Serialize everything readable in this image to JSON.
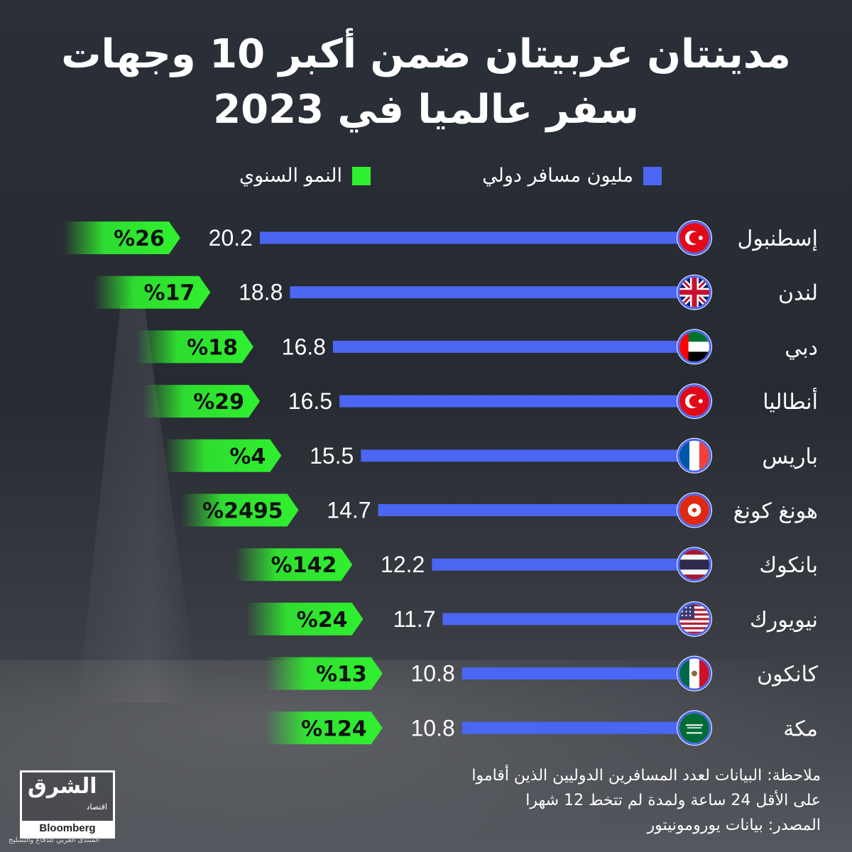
{
  "title_lines": [
    "مدينتان عربيتان ضمن أكبر 10 وجهات",
    "سفر عالميا في 2023"
  ],
  "legend": {
    "travelers": "مليون مسافر دولي",
    "growth": "النمو السنوي"
  },
  "colors": {
    "bar": "#4a66f2",
    "growth": "#2ff02f",
    "background": "#2a2e35"
  },
  "chart_data": {
    "type": "bar",
    "orientation": "horizontal",
    "categories": [
      "إسطنبول",
      "لندن",
      "دبي",
      "أنطاليا",
      "باريس",
      "هونغ كونغ",
      "بانكوك",
      "نيويورك",
      "كانكون",
      "مكة"
    ],
    "series": [
      {
        "name": "مليون مسافر دولي",
        "values": [
          20.2,
          18.8,
          16.8,
          16.5,
          15.5,
          14.7,
          12.2,
          11.7,
          10.8,
          10.8
        ]
      },
      {
        "name": "النمو السنوي",
        "values": [
          "%26",
          "%17",
          "%18",
          "%29",
          "%4",
          "%2495",
          "%142",
          "%24",
          "%13",
          "%124"
        ]
      }
    ],
    "flags": [
      "turkey-flag-icon",
      "uk-flag-icon",
      "uae-flag-icon",
      "turkey-flag-icon",
      "france-flag-icon",
      "hongkong-flag-icon",
      "thailand-flag-icon",
      "usa-flag-icon",
      "mexico-flag-icon",
      "saudi-flag-icon"
    ]
  },
  "footer": {
    "note_line1": "ملاحظة: البيانات لعدد المسافرين الدوليين الذين أقاموا",
    "note_line2": "على الأقل 24 ساعة ولمدة لم تتخط 12 شهرا",
    "source": "المصدر: بيانات يورومونيتور"
  },
  "logo": {
    "name": "الشرق",
    "sub": "اقتصاد",
    "partner": "Bloomberg"
  },
  "watermark": "المنتدى العربي للدفاع والتسليح"
}
